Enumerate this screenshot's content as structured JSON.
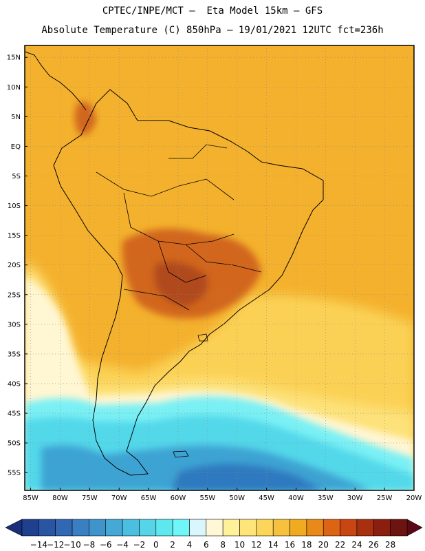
{
  "header": {
    "line1": "CPTEC/INPE/MCT –  Eta Model 15km – GFS",
    "line2": "Absolute Temperature (C) 850hPa – 19/01/2021 12UTC fct=236h"
  },
  "map": {
    "lat_labels": [
      "15N",
      "10N",
      "5N",
      "EQ",
      "5S",
      "10S",
      "15S",
      "20S",
      "25S",
      "30S",
      "35S",
      "40S",
      "45S",
      "50S",
      "55S"
    ],
    "lon_labels": [
      "85W",
      "80W",
      "75W",
      "70W",
      "65W",
      "60W",
      "55W",
      "50W",
      "45W",
      "40W",
      "35W",
      "30W",
      "25W",
      "20W"
    ],
    "lat_values": [
      15,
      10,
      5,
      0,
      -5,
      -10,
      -15,
      -20,
      -25,
      -30,
      -35,
      -40,
      -45,
      -50,
      -55
    ],
    "lon_values": [
      -85,
      -80,
      -75,
      -70,
      -65,
      -60,
      -55,
      -50,
      -45,
      -40,
      -35,
      -30,
      -25,
      -20
    ],
    "lat_range": [
      -58,
      17
    ],
    "lon_range": [
      -86,
      -20
    ]
  },
  "colorbar": {
    "ticks": [
      "-14",
      "-12",
      "-10",
      "-8",
      "-6",
      "-4",
      "-2",
      "0",
      "2",
      "4",
      "6",
      "8",
      "10",
      "12",
      "14",
      "16",
      "18",
      "20",
      "22",
      "24",
      "26",
      "28"
    ],
    "colors": [
      "#1f3f8f",
      "#2a55a3",
      "#3268b3",
      "#3a7fc2",
      "#3f94cc",
      "#45a9d6",
      "#4cbfe0",
      "#56d4e8",
      "#5ee8ee",
      "#6ef6f8",
      "#d8f6fb",
      "#fff7d6",
      "#fff09a",
      "#fde57a",
      "#fbd65a",
      "#f5c13e",
      "#f0ab20",
      "#e8891a",
      "#dc6414",
      "#c84612",
      "#a83010",
      "#8a1f10",
      "#6e1410"
    ],
    "low_color": "#1a2f7a",
    "high_color": "#5a0a16"
  },
  "colors": {
    "ocean_warm": "#f4b12d",
    "land": "#f0a928",
    "hot_core": "#d2661c",
    "hottest": "#b04a1c",
    "sea_mid": "#fbd155",
    "sea_pale": "#fde27a",
    "sea_cream": "#fff6d3",
    "cold_cyan": "#7af0f4",
    "cold_aqua": "#52d8ea",
    "cold_blue": "#3ea3d3",
    "cold_deep": "#2f79bf"
  }
}
